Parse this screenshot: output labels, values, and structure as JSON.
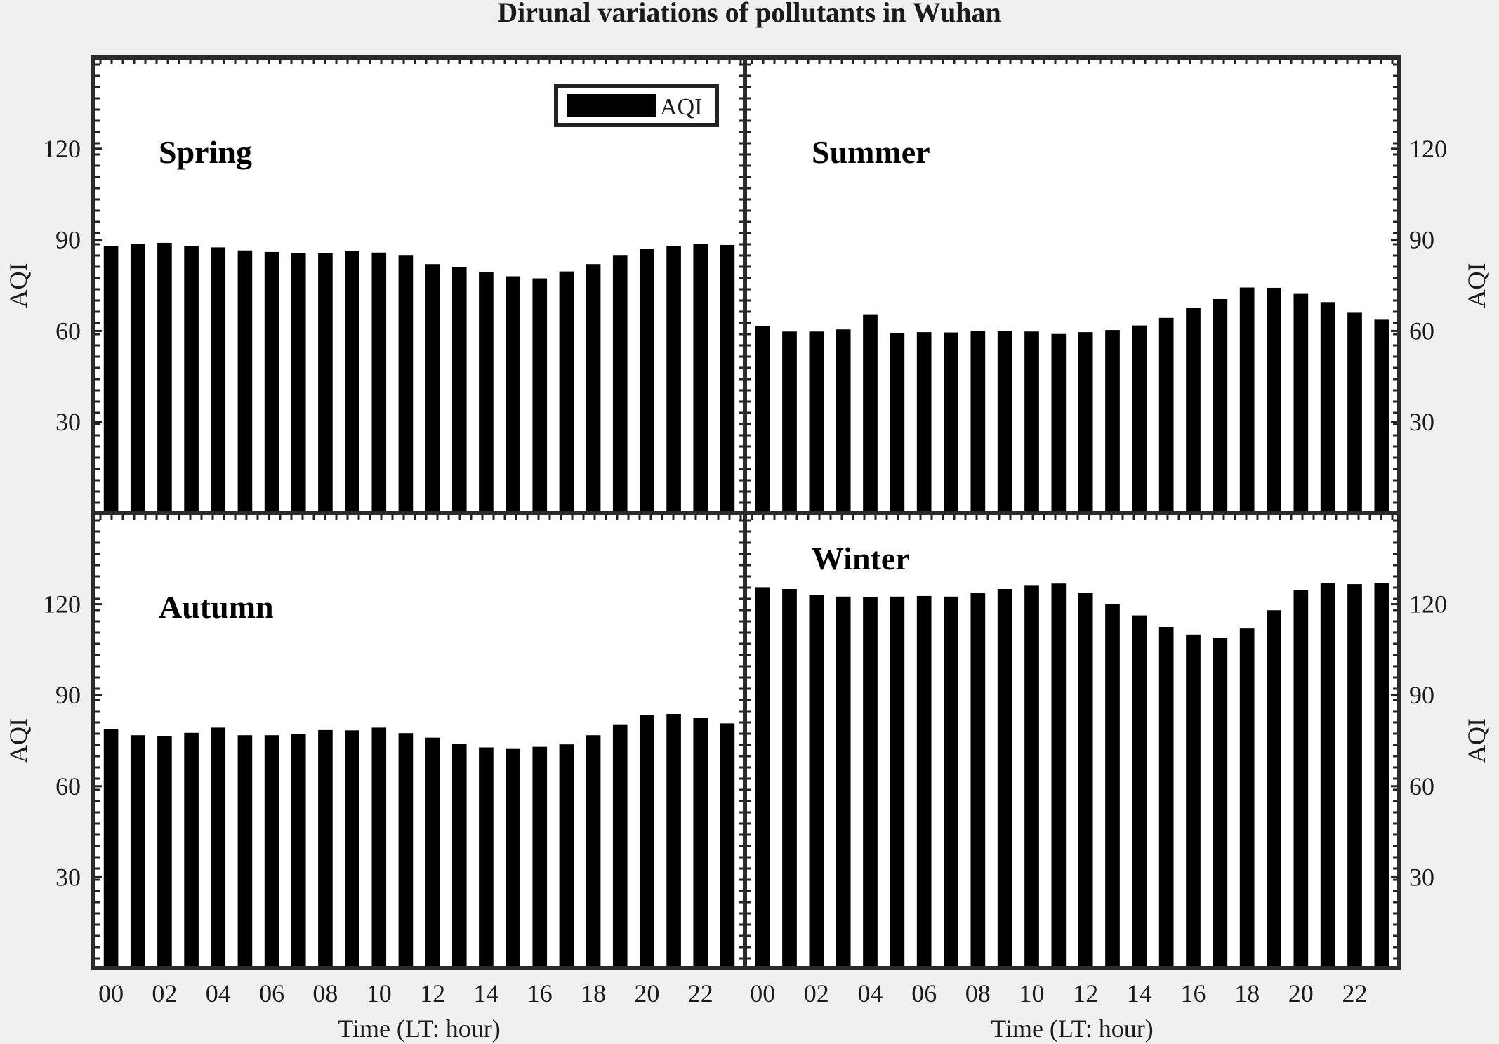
{
  "chart_data": {
    "type": "bar",
    "title": "Dirunal variations of pollutants in Wuhan",
    "legend": {
      "label": "AQI",
      "placement": "top-right"
    },
    "xlabel": "Time (LT: hour)",
    "ylabel": "AQI",
    "ylim": [
      0,
      150
    ],
    "yticks": [
      30,
      60,
      90,
      120
    ],
    "x": [
      0,
      1,
      2,
      3,
      4,
      5,
      6,
      7,
      8,
      9,
      10,
      11,
      12,
      13,
      14,
      15,
      16,
      17,
      18,
      19,
      20,
      21,
      22,
      23
    ],
    "xtick_labels": [
      "00",
      "02",
      "04",
      "06",
      "08",
      "10",
      "12",
      "14",
      "16",
      "18",
      "20",
      "22"
    ],
    "grid": false,
    "bar_color": "#000000",
    "panels": [
      {
        "name": "Spring",
        "values": [
          88,
          88.6,
          89,
          88,
          87.5,
          86.5,
          86,
          85.6,
          85.6,
          86.3,
          85.8,
          85,
          82,
          81,
          79.5,
          78,
          77.3,
          79.6,
          82,
          85,
          87,
          88,
          88.6,
          88.3
        ]
      },
      {
        "name": "Summer",
        "values": [
          61.5,
          59.8,
          59.8,
          60.5,
          65.5,
          59.3,
          59.6,
          59.5,
          60,
          60,
          59.8,
          59,
          59.6,
          60.3,
          61.8,
          64.3,
          67.6,
          70.5,
          74.3,
          74.2,
          72.2,
          69.5,
          66,
          63.7
        ]
      },
      {
        "name": "Autumn",
        "values": [
          78.8,
          76.8,
          76.5,
          77.6,
          79.3,
          76.8,
          76.8,
          77.2,
          78.5,
          78.4,
          79.3,
          77.5,
          76,
          74,
          72.8,
          72.3,
          73,
          73.8,
          76.8,
          80.4,
          83.5,
          83.8,
          82.5,
          80.7
        ]
      },
      {
        "name": "Winter",
        "values": [
          125.6,
          125,
          123,
          122.5,
          122.3,
          122.5,
          122.7,
          122.5,
          123.6,
          125,
          126.3,
          126.8,
          123.8,
          120,
          116.3,
          112.5,
          110,
          108.8,
          112,
          118,
          124.6,
          127,
          126.6,
          127
        ]
      }
    ]
  }
}
